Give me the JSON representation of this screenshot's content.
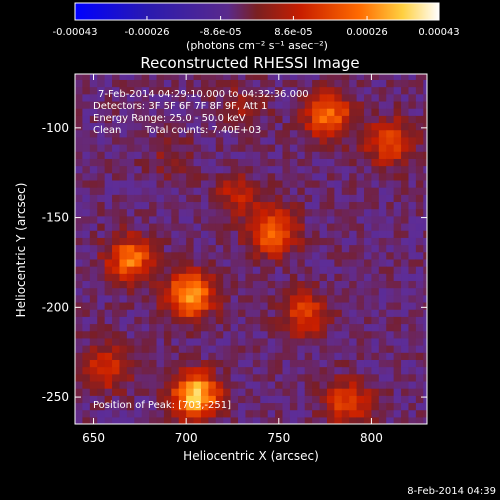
{
  "chart_data": {
    "type": "heatmap",
    "title": "Reconstructed RHESSI Image",
    "xlabel": "Heliocentric X (arcsec)",
    "ylabel": "Heliocentric Y (arcsec)",
    "xlim": [
      640,
      830
    ],
    "ylim": [
      -265,
      -70
    ],
    "xticks": [
      650,
      700,
      750,
      800
    ],
    "yticks": [
      -100,
      -150,
      -200,
      -250
    ],
    "colorbar": {
      "ticks": [
        "-0.00043",
        "-0.00026",
        "-8.6e-05",
        "8.6e-05",
        "0.00026",
        "0.00043"
      ],
      "tick_values": [
        -0.00043,
        -0.00026,
        -8.6e-05,
        8.6e-05,
        0.00026,
        0.00043
      ],
      "range": [
        -0.00043,
        0.00043
      ],
      "unit_label": "(photons cm⁻² s⁻¹ asec⁻²)"
    },
    "annotations": [
      "7-Feb-2014 04:29:10.000 to 04:32:36.000",
      "Detectors: 3F 5F 6F 7F 8F 9F, Att 1",
      "Energy Range: 25.0 - 50.0 keV",
      "Clean",
      "Total counts: 7.40E+03"
    ],
    "peak_label": "Position of Peak: [703,-251]",
    "peak": [
      703,
      -251
    ],
    "sources": [
      {
        "x": 703,
        "y": -251,
        "value": 0.00043
      },
      {
        "x": 700,
        "y": -195,
        "value": 0.00038
      },
      {
        "x": 668,
        "y": -175,
        "value": 0.0003
      },
      {
        "x": 745,
        "y": -160,
        "value": 0.0003
      },
      {
        "x": 762,
        "y": -205,
        "value": 0.00022
      },
      {
        "x": 775,
        "y": -95,
        "value": 0.0003
      },
      {
        "x": 808,
        "y": -110,
        "value": 0.00024
      },
      {
        "x": 655,
        "y": -235,
        "value": 0.0002
      },
      {
        "x": 785,
        "y": -255,
        "value": 0.00022
      },
      {
        "x": 725,
        "y": -140,
        "value": 0.00014
      },
      {
        "x": 690,
        "y": -120,
        "value": 8e-05
      },
      {
        "x": 728,
        "y": -90,
        "value": 0.0001
      }
    ]
  },
  "footer": {
    "timestamp": "8-Feb-2014 04:39"
  },
  "colors": {
    "background": "#000000",
    "text": "#ffffff",
    "colormap": [
      "#0000ff",
      "#3a1aa8",
      "#6a2fb8",
      "#7a2a2a",
      "#c81e00",
      "#ff6a00",
      "#ffd040",
      "#ffffff"
    ]
  }
}
